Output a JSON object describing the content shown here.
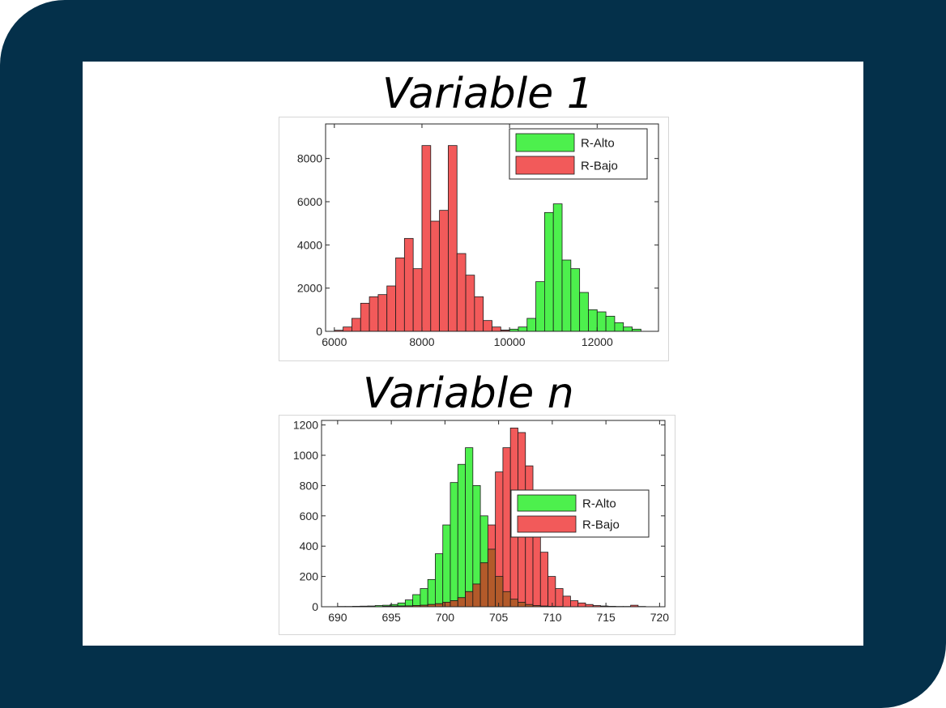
{
  "slide": {
    "title1": "Variable 1",
    "title2": "Variable n"
  },
  "chart_data": [
    {
      "type": "bar",
      "title": "Variable 1",
      "xlim": [
        5800,
        13400
      ],
      "ylim": [
        0,
        9600
      ],
      "xticks": [
        6000,
        8000,
        10000,
        12000
      ],
      "yticks": [
        0,
        2000,
        4000,
        6000,
        8000
      ],
      "bin_width": 200,
      "grid": false,
      "legend_position": "top-right",
      "series": [
        {
          "name": "R-Alto",
          "color": "#4df04d",
          "bin_starts": [
            9200,
            9400,
            9600,
            9800,
            10000,
            10200,
            10400,
            10600,
            10800,
            11000,
            11200,
            11400,
            11600,
            11800,
            12000,
            12200,
            12400,
            12600,
            12800
          ],
          "values": [
            20,
            20,
            40,
            60,
            100,
            200,
            600,
            2300,
            5500,
            5900,
            3300,
            2900,
            1800,
            1000,
            900,
            700,
            400,
            200,
            100
          ]
        },
        {
          "name": "R-Bajo",
          "color": "#f25a5a",
          "bin_starts": [
            6000,
            6200,
            6400,
            6600,
            6800,
            7000,
            7200,
            7400,
            7600,
            7800,
            8000,
            8200,
            8400,
            8600,
            8800,
            9000,
            9200,
            9400,
            9600,
            9800
          ],
          "values": [
            50,
            200,
            600,
            1300,
            1600,
            1700,
            2100,
            3400,
            4300,
            2900,
            8600,
            5100,
            5600,
            8600,
            3600,
            2600,
            1600,
            500,
            200,
            50
          ]
        }
      ]
    },
    {
      "type": "bar",
      "title": "Variable n",
      "xlim": [
        688.5,
        720.5
      ],
      "ylim": [
        0,
        1230
      ],
      "xticks": [
        690,
        695,
        700,
        705,
        710,
        715,
        720
      ],
      "yticks": [
        0,
        200,
        400,
        600,
        800,
        1000,
        1200
      ],
      "bin_width": 0.7,
      "grid": false,
      "legend_position": "right",
      "overlap_color": "#b35a2a",
      "series": [
        {
          "name": "R-Alto",
          "color": "#4df04d",
          "bin_starts": [
            690.0,
            690.7,
            691.4,
            692.1,
            692.8,
            693.5,
            694.2,
            694.9,
            695.6,
            696.3,
            697.0,
            697.7,
            698.4,
            699.1,
            699.8,
            700.5,
            701.2,
            701.9,
            702.6,
            703.3,
            704.0,
            704.7,
            705.4,
            706.1,
            706.8,
            707.5,
            708.2,
            708.9,
            709.6,
            710.3
          ],
          "values": [
            2,
            2,
            3,
            4,
            5,
            8,
            10,
            15,
            25,
            45,
            80,
            120,
            180,
            350,
            540,
            820,
            940,
            1050,
            800,
            600,
            380,
            200,
            100,
            50,
            30,
            15,
            8,
            5,
            3,
            2
          ]
        },
        {
          "name": "R-Bajo",
          "color": "#f25a5a",
          "bin_starts": [
            694.2,
            694.9,
            695.6,
            696.3,
            697.0,
            697.7,
            698.4,
            699.1,
            699.8,
            700.5,
            701.2,
            701.9,
            702.6,
            703.3,
            704.0,
            704.7,
            705.4,
            706.1,
            706.8,
            707.5,
            708.2,
            708.9,
            709.6,
            710.3,
            711.0,
            711.7,
            712.4,
            713.1,
            713.8,
            714.5,
            715.2,
            715.9,
            716.6,
            717.3,
            718.0
          ],
          "values": [
            3,
            4,
            5,
            6,
            8,
            10,
            15,
            20,
            30,
            40,
            60,
            100,
            150,
            290,
            540,
            890,
            1050,
            1180,
            1150,
            930,
            600,
            360,
            200,
            120,
            70,
            40,
            25,
            15,
            8,
            5,
            3,
            2,
            2,
            10,
            2
          ]
        }
      ]
    }
  ]
}
